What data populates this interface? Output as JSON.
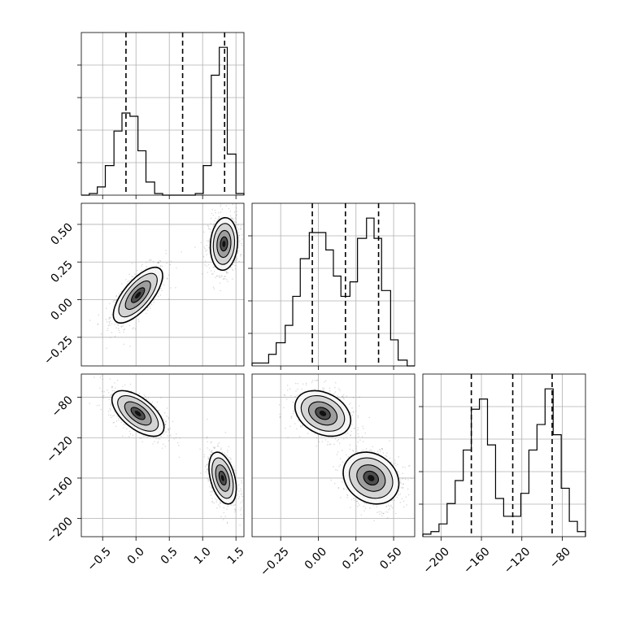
{
  "chart_data": {
    "type": "corner",
    "grid": true,
    "params": [
      {
        "ticks": [
          -0.5,
          0.0,
          0.5,
          1.0,
          1.5
        ],
        "tick_labels": [
          "−0.5",
          "0.0",
          "0.5",
          "1.0",
          "1.5"
        ],
        "range": [
          -0.82,
          1.62
        ],
        "quantiles": [
          -0.15,
          0.7,
          1.33
        ]
      },
      {
        "ticks": [
          -0.25,
          0.0,
          0.25,
          0.5
        ],
        "tick_labels": [
          "−0.25",
          "0.00",
          "0.25",
          "0.50"
        ],
        "range": [
          -0.44,
          0.64
        ],
        "quantiles": [
          -0.04,
          0.18,
          0.4
        ]
      },
      {
        "ticks": [
          -200,
          -160,
          -120,
          -80
        ],
        "tick_labels": [
          "−200",
          "−160",
          "−120",
          "−80"
        ],
        "range": [
          -218,
          -57
        ],
        "quantiles": [
          -170,
          -129,
          -90
        ]
      }
    ],
    "hist": [
      {
        "param": 0,
        "edges": [
          -0.82,
          -0.7,
          -0.58,
          -0.46,
          -0.33,
          -0.21,
          -0.09,
          0.03,
          0.15,
          0.28,
          0.4,
          0.52,
          0.64,
          0.76,
          0.89,
          1.01,
          1.13,
          1.25,
          1.37,
          1.5,
          1.62
        ],
        "counts": [
          0,
          1,
          5,
          18,
          39,
          50,
          48,
          27,
          8,
          1,
          0,
          0,
          0,
          0,
          1,
          18,
          73,
          90,
          25,
          1
        ]
      },
      {
        "param": 1,
        "edges": [
          -0.44,
          -0.39,
          -0.33,
          -0.28,
          -0.22,
          -0.17,
          -0.12,
          -0.06,
          -0.01,
          0.05,
          0.1,
          0.15,
          0.21,
          0.26,
          0.32,
          0.37,
          0.42,
          0.48,
          0.53,
          0.59,
          0.64
        ],
        "counts": [
          1,
          1,
          4,
          8,
          14,
          24,
          37,
          46,
          46,
          40,
          31,
          24,
          29,
          44,
          51,
          44,
          26,
          9,
          2,
          0
        ]
      },
      {
        "param": 2,
        "edges": [
          -218,
          -210,
          -202,
          -194,
          -186,
          -178,
          -170,
          -162,
          -154,
          -146,
          -138,
          -130,
          -121,
          -113,
          -105,
          -97,
          -89,
          -81,
          -73,
          -65,
          -57
        ],
        "counts": [
          1,
          2,
          5,
          13,
          22,
          34,
          50,
          54,
          36,
          15,
          8,
          8,
          17,
          34,
          44,
          58,
          40,
          19,
          6,
          2
        ]
      }
    ],
    "pairs": [
      {
        "x_param": 0,
        "y_param": 1,
        "modes": [
          {
            "mean": [
              0.03,
              0.03
            ],
            "sd": [
              0.18,
              0.09
            ],
            "rho": 0.7
          },
          {
            "mean": [
              1.32,
              0.37
            ],
            "sd": [
              0.1,
              0.085
            ],
            "rho": 0.1
          }
        ]
      },
      {
        "x_param": 0,
        "y_param": 2,
        "modes": [
          {
            "mean": [
              0.03,
              -96
            ],
            "sd": [
              0.19,
              11
            ],
            "rho": -0.6
          },
          {
            "mean": [
              1.3,
              -160
            ],
            "sd": [
              0.1,
              12.5
            ],
            "rho": -0.4
          }
        ]
      },
      {
        "x_param": 1,
        "y_param": 2,
        "modes": [
          {
            "mean": [
              0.03,
              -96
            ],
            "sd": [
              0.09,
              11
            ],
            "rho": -0.3
          },
          {
            "mean": [
              0.35,
              -160
            ],
            "sd": [
              0.09,
              12.5
            ],
            "rho": -0.2
          }
        ]
      }
    ]
  }
}
